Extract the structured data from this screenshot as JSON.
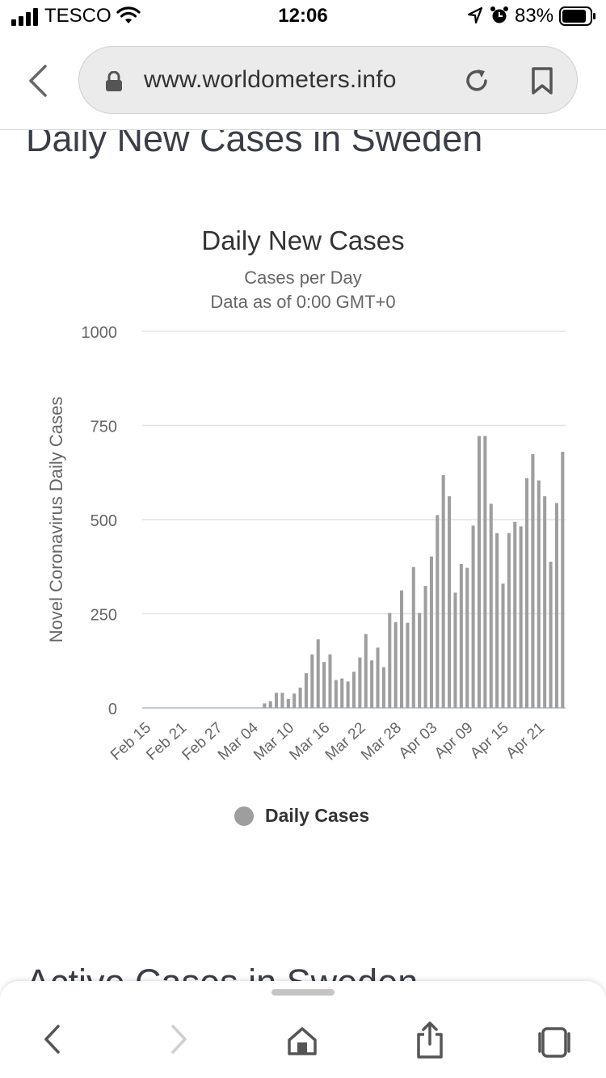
{
  "status_bar": {
    "carrier": "TESCO",
    "time": "12:06",
    "battery_percent": "83%"
  },
  "browser": {
    "url": "www.worldometers.info",
    "icons": [
      "back-icon",
      "lock-icon",
      "reload-icon",
      "bookmark-icon",
      "share-icon",
      "home-icon",
      "tabs-icon",
      "forward-icon"
    ]
  },
  "page": {
    "section_heading": "Daily New Cases in Sweden",
    "next_section_heading": "Active Cases in Sweden"
  },
  "chart_data": {
    "type": "bar",
    "title": "Daily New Cases",
    "subtitle_lines": [
      "Cases per Day",
      "Data as of 0:00 GMT+0"
    ],
    "ylabel": "Novel Coronavirus Daily Cases",
    "ylim": [
      0,
      1000
    ],
    "yticks": [
      0,
      250,
      500,
      750,
      1000
    ],
    "xtick_labels": [
      "Feb 15",
      "Feb 21",
      "Feb 27",
      "Mar 04",
      "Mar 10",
      "Mar 16",
      "Mar 22",
      "Mar 28",
      "Apr 03",
      "Apr 09",
      "Apr 15",
      "Apr 21"
    ],
    "x_start": "Feb 15",
    "x_end": "Apr 22",
    "grid": true,
    "legend_position": "bottom-center",
    "bar_color": "#9e9e9e",
    "series": [
      {
        "name": "Daily Cases",
        "values": [
          0,
          0,
          0,
          0,
          0,
          0,
          0,
          0,
          0,
          0,
          0,
          0,
          0,
          0,
          0,
          0,
          0,
          0,
          0,
          0,
          12,
          18,
          40,
          40,
          24,
          38,
          54,
          92,
          142,
          182,
          122,
          142,
          74,
          78,
          70,
          96,
          134,
          196,
          126,
          160,
          108,
          252,
          228,
          312,
          226,
          374,
          252,
          324,
          402,
          512,
          618,
          562,
          306,
          382,
          372,
          484,
          722,
          722,
          542,
          464,
          330,
          464,
          494,
          482,
          610,
          674,
          604,
          562,
          388,
          544,
          680
        ]
      }
    ]
  }
}
